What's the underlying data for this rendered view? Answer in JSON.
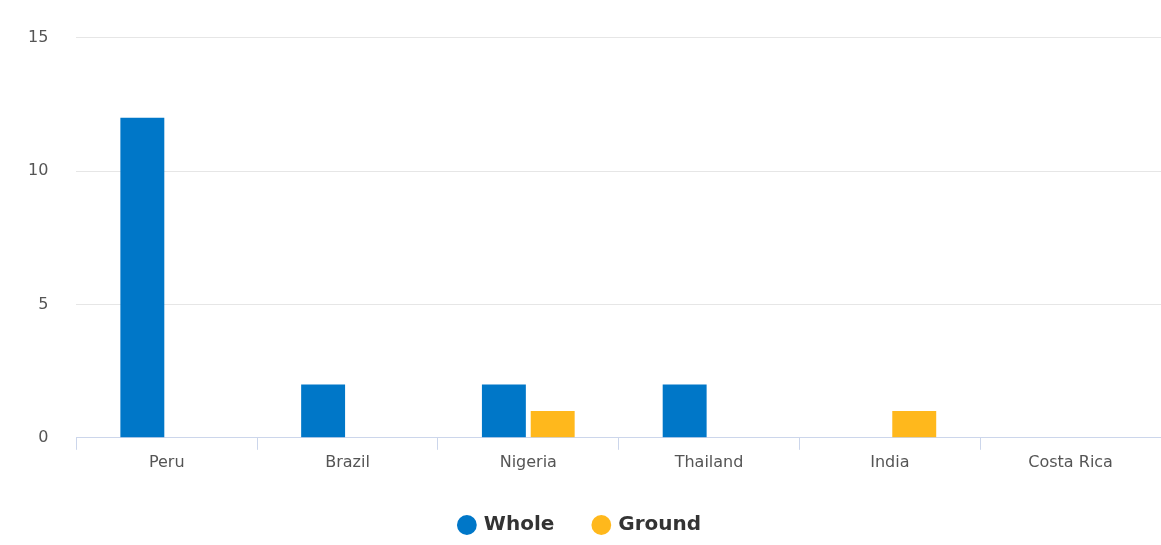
{
  "chart_data": {
    "type": "bar",
    "categories": [
      "Peru",
      "Brazil",
      "Nigeria",
      "Thailand",
      "India",
      "Costa Rica"
    ],
    "series": [
      {
        "name": "Whole",
        "color": "#0077c8",
        "values": [
          12,
          2,
          2,
          2,
          0,
          0
        ]
      },
      {
        "name": "Ground",
        "color": "#ffb81c",
        "values": [
          0,
          0,
          1,
          0,
          1,
          0
        ]
      }
    ],
    "ylim": [
      0,
      15
    ],
    "yticks": [
      0,
      5,
      10,
      15
    ],
    "grid": "y",
    "legend": "bottom"
  }
}
